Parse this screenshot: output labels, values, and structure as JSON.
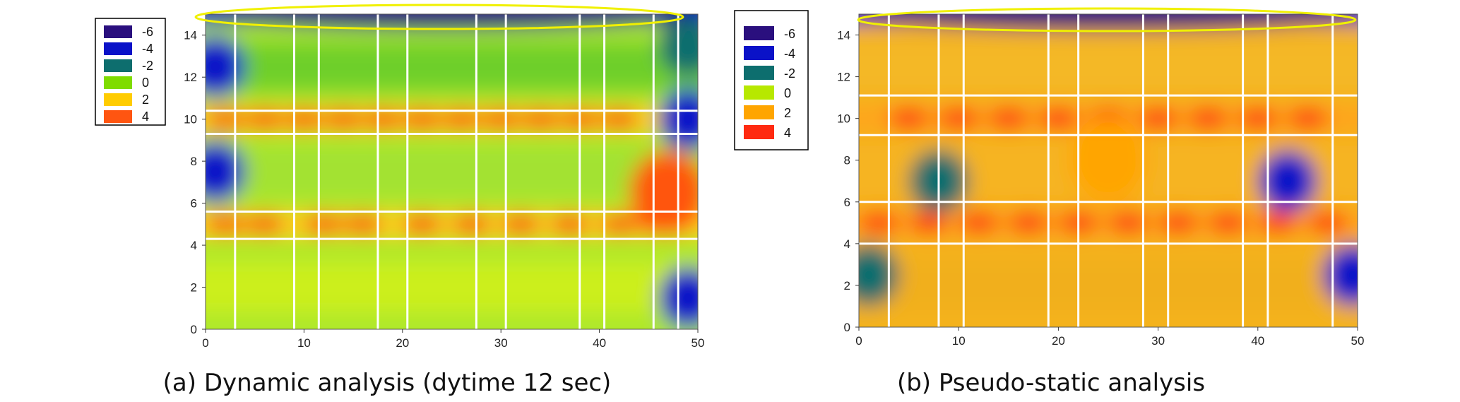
{
  "legend": [
    {
      "label": "-6",
      "color": "#2a0f7e"
    },
    {
      "label": "-4",
      "color": "#0a12c8"
    },
    {
      "label": "-2",
      "color": "#0d6e6e"
    },
    {
      "label": "0",
      "color": "#7fdc00"
    },
    {
      "label": "2",
      "color": "#ffcc00"
    },
    {
      "label": "4",
      "color": "#ff5511"
    }
  ],
  "legend_b": [
    {
      "label": "-6",
      "color": "#2a0f7e"
    },
    {
      "label": "-4",
      "color": "#0a12c8"
    },
    {
      "label": "-2",
      "color": "#0d6e6e"
    },
    {
      "label": "0",
      "color": "#b7e800"
    },
    {
      "label": "2",
      "color": "#ffa500"
    },
    {
      "label": "4",
      "color": "#ff2a10"
    }
  ],
  "chart_data": [
    {
      "type": "heatmap",
      "title": "",
      "caption": "(a) Dynamic analysis (dytime 12 sec)",
      "xlabel": "",
      "ylabel": "",
      "xlim": [
        0,
        50
      ],
      "ylim": [
        0,
        15
      ],
      "x_ticks": [
        "0",
        "10",
        "20",
        "30",
        "40",
        "50"
      ],
      "y_ticks": [
        "0",
        "2",
        "4",
        "6",
        "8",
        "10",
        "12",
        "14"
      ],
      "legend_placement": "left",
      "grid": true,
      "vertical_lines": [
        3,
        9,
        11.5,
        17.5,
        20.5,
        27.5,
        30.5,
        38,
        40.5,
        45.5,
        48
      ],
      "horizontal_lines": [
        4.3,
        5.6,
        9.3,
        10.4
      ],
      "highlight": {
        "shape": "ellipse",
        "color": "#f0f000",
        "region": "top edge (y≈15)"
      },
      "colorscale": [
        "-6",
        "-4",
        "-2",
        "0",
        "2",
        "4"
      ],
      "hotspot_rows": [
        {
          "y": 5,
          "x": [
            2,
            6,
            12,
            16,
            22,
            27,
            32,
            37,
            42,
            46
          ],
          "value": 4
        },
        {
          "y": 10,
          "x": [
            2,
            6,
            10,
            14,
            18,
            22,
            26,
            30,
            34,
            38,
            42
          ],
          "value": 3
        }
      ],
      "cold_spots": [
        {
          "x": 1,
          "y": 12.5,
          "value": -4
        },
        {
          "x": 1,
          "y": 7.5,
          "value": -4
        },
        {
          "x": 49,
          "y": 1.5,
          "value": -4
        },
        {
          "x": 49,
          "y": 10,
          "value": -4
        },
        {
          "x": 49,
          "y": 13.5,
          "value": -2
        },
        {
          "x": 25,
          "y": 15,
          "value": -6
        }
      ],
      "warm_regions": [
        {
          "x": 47,
          "y": 6.5,
          "value": 4
        }
      ]
    },
    {
      "type": "heatmap",
      "title": "",
      "caption": "(b) Pseudo-static analysis",
      "xlabel": "",
      "ylabel": "",
      "xlim": [
        0,
        50
      ],
      "ylim": [
        0,
        15
      ],
      "x_ticks": [
        "0",
        "10",
        "20",
        "30",
        "40",
        "50"
      ],
      "y_ticks": [
        "0",
        "2",
        "4",
        "6",
        "8",
        "10",
        "12",
        "14"
      ],
      "legend_placement": "left",
      "grid": true,
      "vertical_lines": [
        3,
        8,
        10.5,
        19,
        22,
        28.5,
        31,
        38.5,
        41,
        47.5
      ],
      "horizontal_lines": [
        4,
        6,
        9.2,
        11.1
      ],
      "highlight": {
        "shape": "ellipse",
        "color": "#f0f000",
        "region": "top edge (y≈15)"
      },
      "colorscale": [
        "-6",
        "-4",
        "-2",
        "0",
        "2",
        "4"
      ],
      "hotspot_rows": [
        {
          "y": 5,
          "x": [
            2,
            7,
            12,
            17,
            22,
            27,
            32,
            37,
            42,
            47
          ],
          "value": 4
        },
        {
          "y": 10,
          "x": [
            5,
            10,
            15,
            20,
            25,
            30,
            35,
            40,
            45
          ],
          "value": 3
        }
      ],
      "cold_spots": [
        {
          "x": 8,
          "y": 7,
          "value": -2
        },
        {
          "x": 43,
          "y": 7,
          "value": -3
        },
        {
          "x": 1,
          "y": 2.5,
          "value": -2
        },
        {
          "x": 49.5,
          "y": 2.5,
          "value": -4
        },
        {
          "x": 25,
          "y": 15,
          "value": -6
        }
      ],
      "warm_regions": [
        {
          "x": 25,
          "y": 8,
          "value": 2
        }
      ]
    }
  ]
}
